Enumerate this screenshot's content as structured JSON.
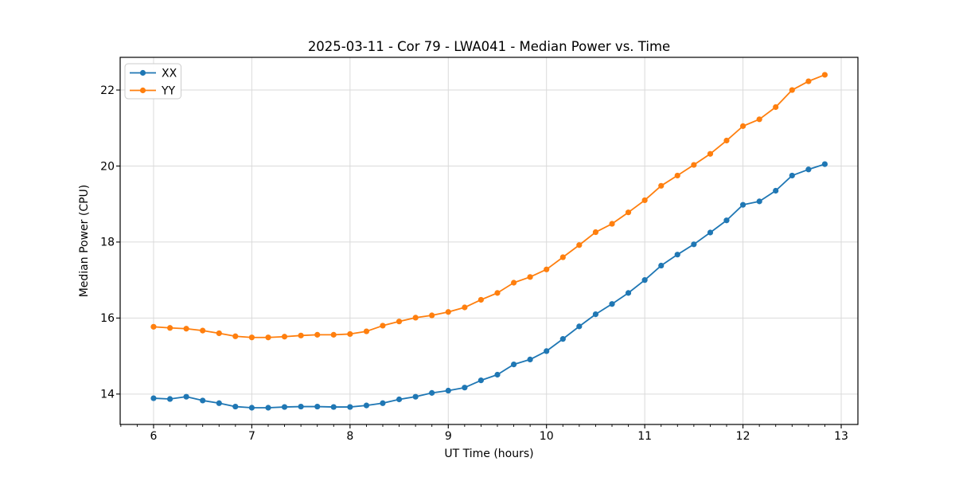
{
  "figure": {
    "background": "#ffffff",
    "plot_bg": "#ffffff",
    "spine_color": "#000000",
    "grid_color": "#dadada",
    "tick_color": "#000000"
  },
  "chart_data": {
    "type": "line",
    "title": "2025-03-11 - Cor 79 - LWA041 - Median Power vs. Time",
    "xlabel": "UT Time (hours)",
    "ylabel": "Median Power (CPU)",
    "x": [
      6.0,
      6.167,
      6.333,
      6.5,
      6.667,
      6.833,
      7.0,
      7.167,
      7.333,
      7.5,
      7.667,
      7.833,
      8.0,
      8.167,
      8.333,
      8.5,
      8.667,
      8.833,
      9.0,
      9.167,
      9.333,
      9.5,
      9.667,
      9.833,
      10.0,
      10.167,
      10.333,
      10.5,
      10.667,
      10.833,
      11.0,
      11.167,
      11.333,
      11.5,
      11.667,
      11.833,
      12.0,
      12.167,
      12.333,
      12.5,
      12.667,
      12.833
    ],
    "series": [
      {
        "name": "XX",
        "color": "#1f77b4",
        "values": [
          13.89,
          13.87,
          13.93,
          13.83,
          13.76,
          13.67,
          13.64,
          13.64,
          13.66,
          13.67,
          13.67,
          13.66,
          13.66,
          13.7,
          13.76,
          13.86,
          13.93,
          14.03,
          14.09,
          14.17,
          14.36,
          14.51,
          14.78,
          14.91,
          15.13,
          15.45,
          15.78,
          16.1,
          16.37,
          16.66,
          17.0,
          17.38,
          17.67,
          17.94,
          18.25,
          18.57,
          18.98,
          19.07,
          19.35,
          19.75,
          19.91,
          20.05
        ]
      },
      {
        "name": "YY",
        "color": "#ff7f0e",
        "values": [
          15.77,
          15.74,
          15.72,
          15.67,
          15.6,
          15.52,
          15.49,
          15.49,
          15.51,
          15.54,
          15.56,
          15.56,
          15.58,
          15.65,
          15.8,
          15.91,
          16.01,
          16.07,
          16.16,
          16.28,
          16.48,
          16.66,
          16.93,
          17.08,
          17.28,
          17.6,
          17.92,
          18.26,
          18.48,
          18.78,
          19.1,
          19.48,
          19.75,
          20.03,
          20.32,
          20.67,
          21.05,
          21.23,
          21.55,
          22.0,
          22.23,
          22.4
        ]
      }
    ],
    "xlim": [
      5.66,
      13.17
    ],
    "ylim": [
      13.2,
      22.86
    ],
    "xticks": [
      6,
      7,
      8,
      9,
      10,
      11,
      12,
      13
    ],
    "yticks": [
      14,
      16,
      18,
      20,
      22
    ],
    "minor_xtick_step": 0.1666667,
    "grid": true,
    "marker": "circle",
    "legend": {
      "location": "upper-left",
      "entries": [
        "XX",
        "YY"
      ]
    }
  }
}
